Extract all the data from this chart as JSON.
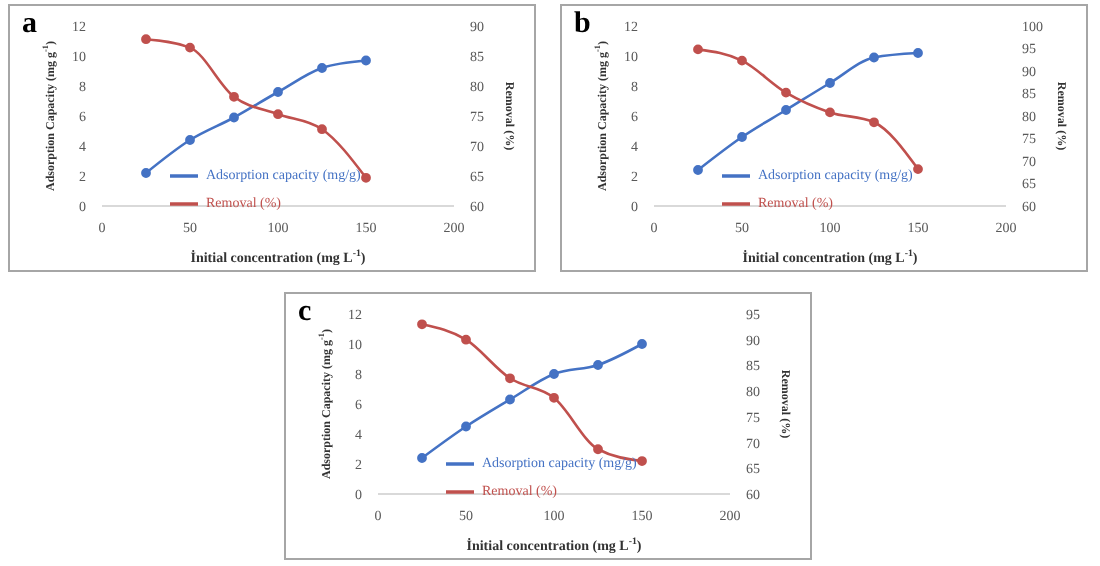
{
  "chart_data": [
    {
      "type": "line",
      "title": "a",
      "xlabel": "İnitial concentration (mg L$^{-1}$)",
      "ylabel": "Adsorption Capacity (mg g$^{-1}$)",
      "y2label": "Removal (%)",
      "x": [
        25,
        50,
        75,
        100,
        125,
        150
      ],
      "xlim": [
        0,
        200
      ],
      "xticks": [
        0,
        50,
        100,
        150,
        200
      ],
      "ylim": [
        0,
        12
      ],
      "yticks": [
        0,
        2,
        4,
        6,
        8,
        10,
        12
      ],
      "y2lim": [
        60,
        90
      ],
      "y2ticks": [
        60,
        65,
        70,
        75,
        80,
        85,
        90
      ],
      "legend": "bottom",
      "marker": "circle",
      "grid": false,
      "series": [
        {
          "name": "Adsorption capacity (mg/g)",
          "color": "#4472c4",
          "values": [
            2.2,
            4.4,
            5.9,
            7.6,
            9.2,
            9.7
          ]
        },
        {
          "name": "Removal (%)",
          "color": "#c0504d",
          "axis": "y2",
          "values": [
            87.8,
            86.4,
            78.2,
            75.3,
            72.8,
            64.7
          ]
        }
      ]
    },
    {
      "type": "line",
      "title": "b",
      "xlabel": "İnitial concentration (mg L$^{-1}$)",
      "ylabel": "Adsorption Capacity (mg g$^{-1}$)",
      "y2label": "Removal (%)",
      "x": [
        25,
        50,
        75,
        100,
        125,
        150
      ],
      "xlim": [
        0,
        200
      ],
      "xticks": [
        0,
        50,
        100,
        150,
        200
      ],
      "ylim": [
        0,
        12
      ],
      "yticks": [
        0,
        2,
        4,
        6,
        8,
        10,
        12
      ],
      "y2lim": [
        60,
        100
      ],
      "y2ticks": [
        60,
        65,
        70,
        75,
        80,
        85,
        90,
        95,
        100
      ],
      "legend": "bottom",
      "marker": "circle",
      "grid": false,
      "series": [
        {
          "name": "Adsorption capacity (mg/g)",
          "color": "#4472c4",
          "values": [
            2.4,
            4.6,
            6.4,
            8.2,
            9.9,
            10.2
          ]
        },
        {
          "name": "Removal (%)",
          "color": "#c0504d",
          "axis": "y2",
          "values": [
            94.8,
            92.3,
            85.2,
            80.8,
            78.6,
            68.2
          ]
        }
      ]
    },
    {
      "type": "line",
      "title": "c",
      "xlabel": "İnitial concentration (mg L$^{-1}$)",
      "ylabel": "Adsorption Capacity (mg g$^{-1}$)",
      "y2label": "Removal (%)",
      "x": [
        25,
        50,
        75,
        100,
        125,
        150
      ],
      "xlim": [
        0,
        200
      ],
      "xticks": [
        0,
        50,
        100,
        150,
        200
      ],
      "ylim": [
        0,
        12
      ],
      "yticks": [
        0,
        2,
        4,
        6,
        8,
        10,
        12
      ],
      "y2lim": [
        60,
        95
      ],
      "y2ticks": [
        60,
        65,
        70,
        75,
        80,
        85,
        90,
        95
      ],
      "legend": "bottom",
      "marker": "circle",
      "grid": false,
      "series": [
        {
          "name": "Adsorption capacity (mg/g)",
          "color": "#4472c4",
          "values": [
            2.4,
            4.5,
            6.3,
            8.0,
            8.6,
            10.0
          ]
        },
        {
          "name": "Removal (%)",
          "color": "#c0504d",
          "axis": "y2",
          "values": [
            93.0,
            90.0,
            82.5,
            78.7,
            68.7,
            66.4
          ]
        }
      ]
    }
  ]
}
